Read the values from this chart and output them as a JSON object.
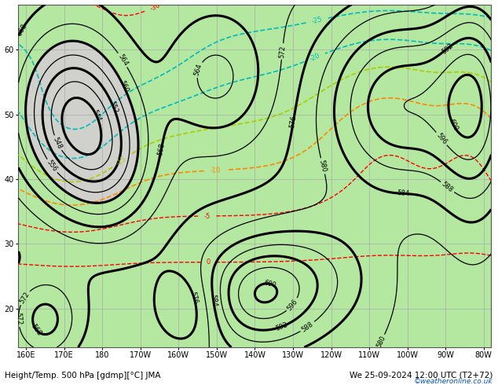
{
  "title_left": "Height/Temp. 500 hPa [gdmp][°C] JMA",
  "title_right": "We 25-09-2024 12:00 UTC (T2+72)",
  "watermark": "©weatheronline.co.uk",
  "fig_width": 6.34,
  "fig_height": 4.9,
  "dpi": 100,
  "xlim": [
    158,
    282
  ],
  "ylim": [
    14,
    67
  ],
  "xticks": [
    160,
    170,
    180,
    190,
    200,
    210,
    220,
    230,
    240,
    250,
    260,
    270,
    280
  ],
  "xticklabels": [
    "160E",
    "170E",
    "180",
    "170W",
    "160W",
    "150W",
    "140W",
    "130W",
    "120W",
    "110W",
    "100W",
    "90W",
    "80W"
  ],
  "yticks": [
    20,
    30,
    40,
    50,
    60
  ],
  "yticklabels": [
    "20",
    "30",
    "40",
    "50",
    "60"
  ],
  "tick_fontsize": 7,
  "label_fontsize": 7.5,
  "grid_color": "#aaaaaa",
  "height_contour_color": "#000000",
  "height_levels_thin": [
    540,
    544,
    548,
    552,
    556,
    560,
    564,
    568,
    572,
    576,
    580,
    584,
    588,
    592,
    596,
    600
  ],
  "height_levels_thick": [
    544,
    552,
    560,
    568,
    576,
    584,
    592,
    600
  ],
  "green_fill_threshold": 560,
  "green_color": "#b4e8a0",
  "land_color": "#d0d0cc",
  "watermark_color": "#0055bb",
  "color_red": "#ff0000",
  "color_orange": "#ff8800",
  "color_yg": "#aacc00",
  "color_cyan": "#00bbbb"
}
